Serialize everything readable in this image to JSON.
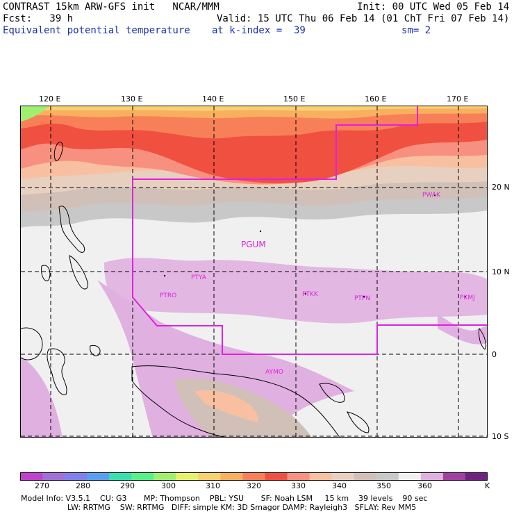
{
  "header": {
    "line1_left": "CONTRAST 15km ARW-GFS init   NCAR/MMM",
    "line1_right": "Init: 00 UTC Wed 05 Feb 14",
    "line2_left": "Fcst:   39 h",
    "line2_right": "Valid: 15 UTC Thu 06 Feb 14 (01 ChT Fri 07 Feb 14)",
    "line3_field": "Equivalent potential temperature",
    "line3_level": "at k-index =  39",
    "line3_smooth": "sm= 2"
  },
  "axes": {
    "lon_labels": [
      "120 E",
      "130 E",
      "140 E",
      "150 E",
      "160 E",
      "170 E"
    ],
    "lat_labels": [
      "20 N",
      "10 N",
      "0",
      "10 S"
    ]
  },
  "stations": [
    {
      "id": "PWAK",
      "size": "small"
    },
    {
      "id": "PGUM",
      "size": "large"
    },
    {
      "id": "PTYA",
      "size": "small"
    },
    {
      "id": "PTRO",
      "size": "small"
    },
    {
      "id": "PTKK",
      "size": "small"
    },
    {
      "id": "PTPN",
      "size": "small"
    },
    {
      "id": "PKMJ",
      "size": "small"
    },
    {
      "id": "AYMO",
      "size": "small"
    }
  ],
  "colorbar": {
    "unit": "K",
    "labels": [
      "270",
      "280",
      "290",
      "300",
      "310",
      "320",
      "330",
      "340",
      "350",
      "360"
    ],
    "colors": [
      "#c040d0",
      "#a070d8",
      "#8080ec",
      "#5aa0f0",
      "#38e0b0",
      "#58f088",
      "#a0f070",
      "#e8f070",
      "#f8d070",
      "#f8b060",
      "#f88058",
      "#f05040",
      "#f89080",
      "#f8c0a0",
      "#e8d0c0",
      "#d0c0b8",
      "#c8c8c8",
      "#f0f0f0",
      "#e0b0e0",
      "#a040a0",
      "#702080"
    ]
  },
  "footer": {
    "line1": "Model Info: V3.5.1    CU: G3       MP: Thompson    PBL: YSU       SF: Noah LSM     15 km    39 levels    90 sec",
    "line2": "LW: RRTMG    SW: RRTMG   DIFF: simple KM: 3D Smagor DAMP: Rayleigh3   SFLAY: Rev MM5"
  }
}
